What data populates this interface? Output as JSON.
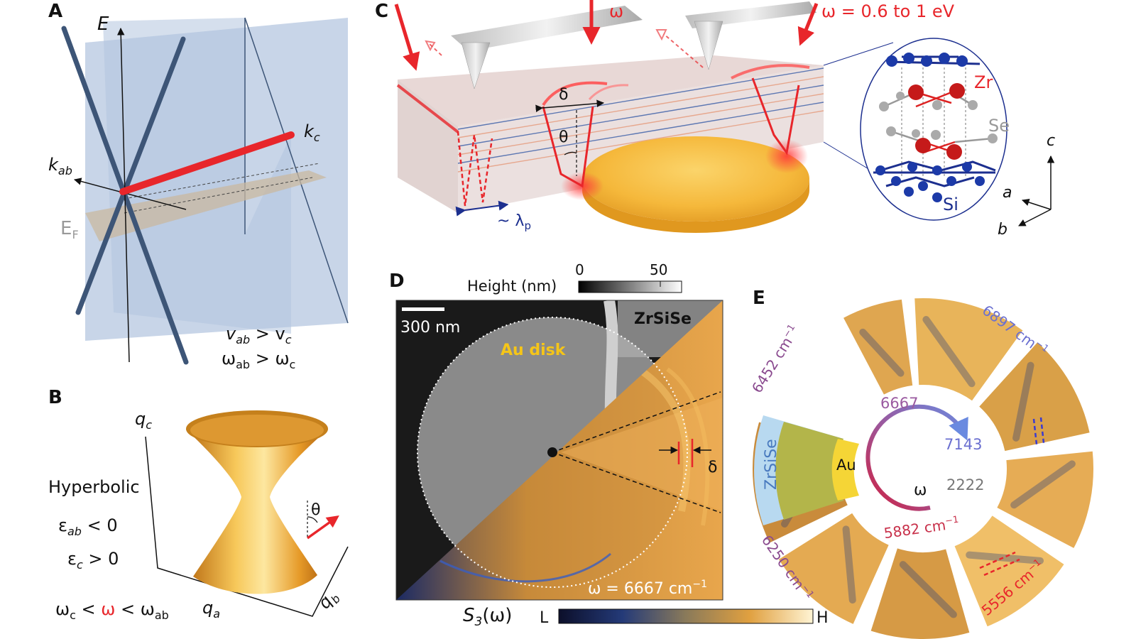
{
  "panels": {
    "A": {
      "letter": "A",
      "axis_e": "E",
      "k_ab": "k",
      "k_ab_sub": "ab",
      "k_c": "k",
      "k_c_sub": "c",
      "e_f": "E",
      "e_f_sub": "F",
      "rel1_left": "v",
      "rel1_left_sub": "ab",
      "rel1_mid": " > v",
      "rel1_right_sub": "c",
      "rel2_left": "ω",
      "rel2_left_sub": "ab",
      "rel2_mid": " > ω",
      "rel2_right_sub": "c"
    },
    "B": {
      "letter": "B",
      "q_c": "q",
      "q_c_sub": "c",
      "q_a": "q",
      "q_a_sub": "a",
      "q_b": "q",
      "q_b_sub": "b",
      "theta": "θ",
      "title": "Hyperbolic",
      "eps1": "ε",
      "eps1_sub": "ab",
      "eps1_rel": " < 0",
      "eps2": "ε",
      "eps2_sub": "c",
      "eps2_rel": " > 0",
      "cond_a": "ω",
      "cond_a_sub": "c",
      "cond_b": " < ",
      "cond_omega": "ω",
      "cond_c": " < ω",
      "cond_c_sub": "ab"
    },
    "C": {
      "letter": "C",
      "omega": "ω",
      "omega_range": "ω = 0.6 to 1 eV",
      "delta": "δ",
      "theta": "θ",
      "lambda": "~ λ",
      "lambda_sub": "p",
      "atom_zr": "Zr",
      "atom_se": "Se",
      "atom_si": "Si",
      "axis_c": "c",
      "axis_a": "a",
      "axis_b": "b"
    },
    "D": {
      "letter": "D",
      "height_label": "Height (nm)",
      "height_min": "0",
      "height_max": "50",
      "scale_bar": "300 nm",
      "material": "ZrSiSe",
      "au_disk": "Au disk",
      "delta": "δ",
      "omega_label": "ω = 6667 cm",
      "omega_unit_sup": "−1",
      "signal": "S",
      "signal_sub": "3",
      "signal_arg": "(ω)",
      "cbar_low": "L",
      "cbar_high": "H"
    },
    "E": {
      "letter": "E",
      "w1": "6452 cm",
      "w2": "6897 cm",
      "w3": "6250 cm",
      "w4": "5556 cm",
      "unit_sup": "−1",
      "inner_start": "6667",
      "inner_end": "7143",
      "inner_angle": "2222",
      "inner_omega": "ω",
      "inner_low": "5882 cm",
      "material": "ZrSiSe",
      "au": "Au"
    }
  },
  "colors": {
    "red": "#e8262b",
    "navy": "#1c2f8f",
    "slate": "#3d5577",
    "gold": "#f2b640",
    "zrsise_blue": "#b8d9f0",
    "olive": "#b3b54a",
    "au_yellow": "#f5d536",
    "purple": "#8a4a8f",
    "lavender": "#6a6fd0"
  }
}
